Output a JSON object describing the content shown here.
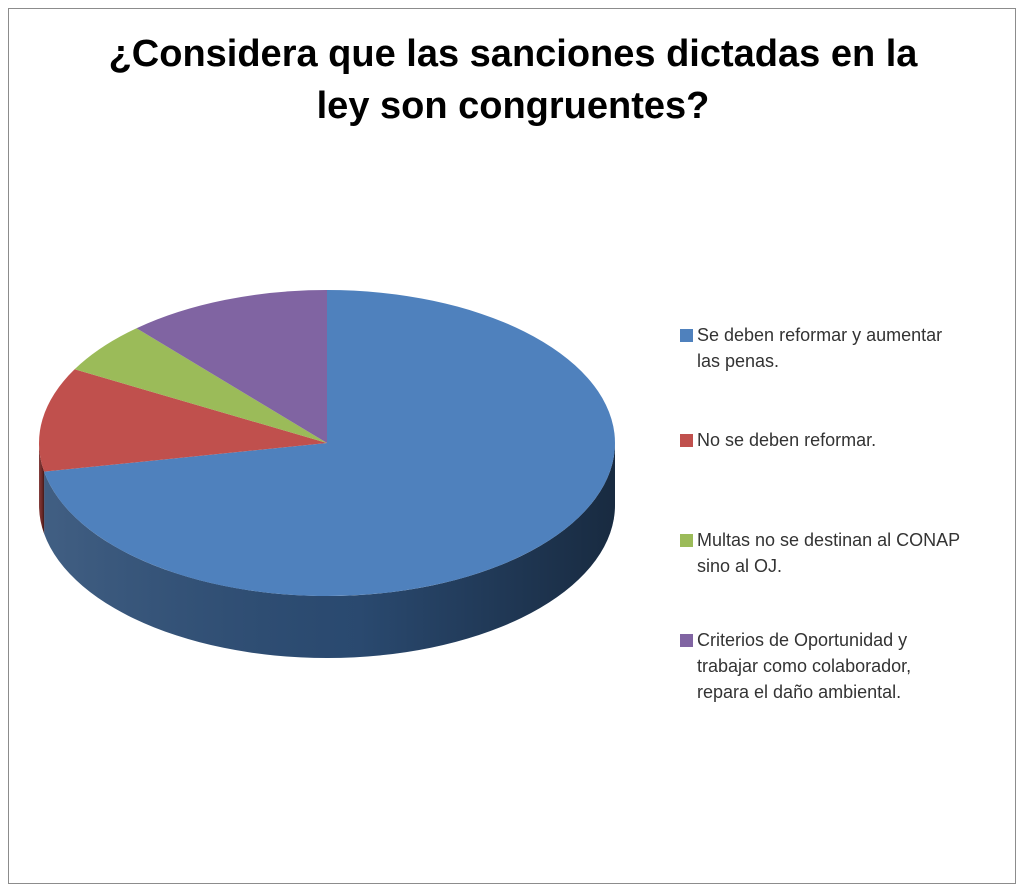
{
  "chart_data": {
    "type": "pie",
    "title_lines": [
      "¿Considera que las sanciones dictadas en la",
      "ley son congruentes?"
    ],
    "categories": [
      "Se deben reformar y aumentar las penas.",
      "No se deben reformar.",
      "Multas no se destinan al CONAP sino al OJ.",
      "Criterios de Oportunidad y trabajar como colaborador, repara el daño ambiental."
    ],
    "values": [
      72,
      11,
      5.5,
      11.5
    ],
    "colors": [
      "#4f81bd",
      "#c0504d",
      "#9bbb59",
      "#8064a2"
    ],
    "side_colors": [
      "#2c4d75",
      "#772c2a",
      "#5f7530",
      "#4d3b62"
    ],
    "legend_position": "right",
    "style": "3d"
  },
  "legend": {
    "items": [
      {
        "label_line1": "Se deben reformar y aumentar",
        "label_line2": "las penas."
      },
      {
        "label_line1": "No se deben reformar.",
        "label_line2": ""
      },
      {
        "label_line1": "Multas no se destinan al CONAP",
        "label_line2": "sino al OJ."
      },
      {
        "label_line1": "Criterios de Oportunidad y",
        "label_line2": "trabajar como colaborador,",
        "label_line3": "repara el daño ambiental."
      }
    ]
  }
}
